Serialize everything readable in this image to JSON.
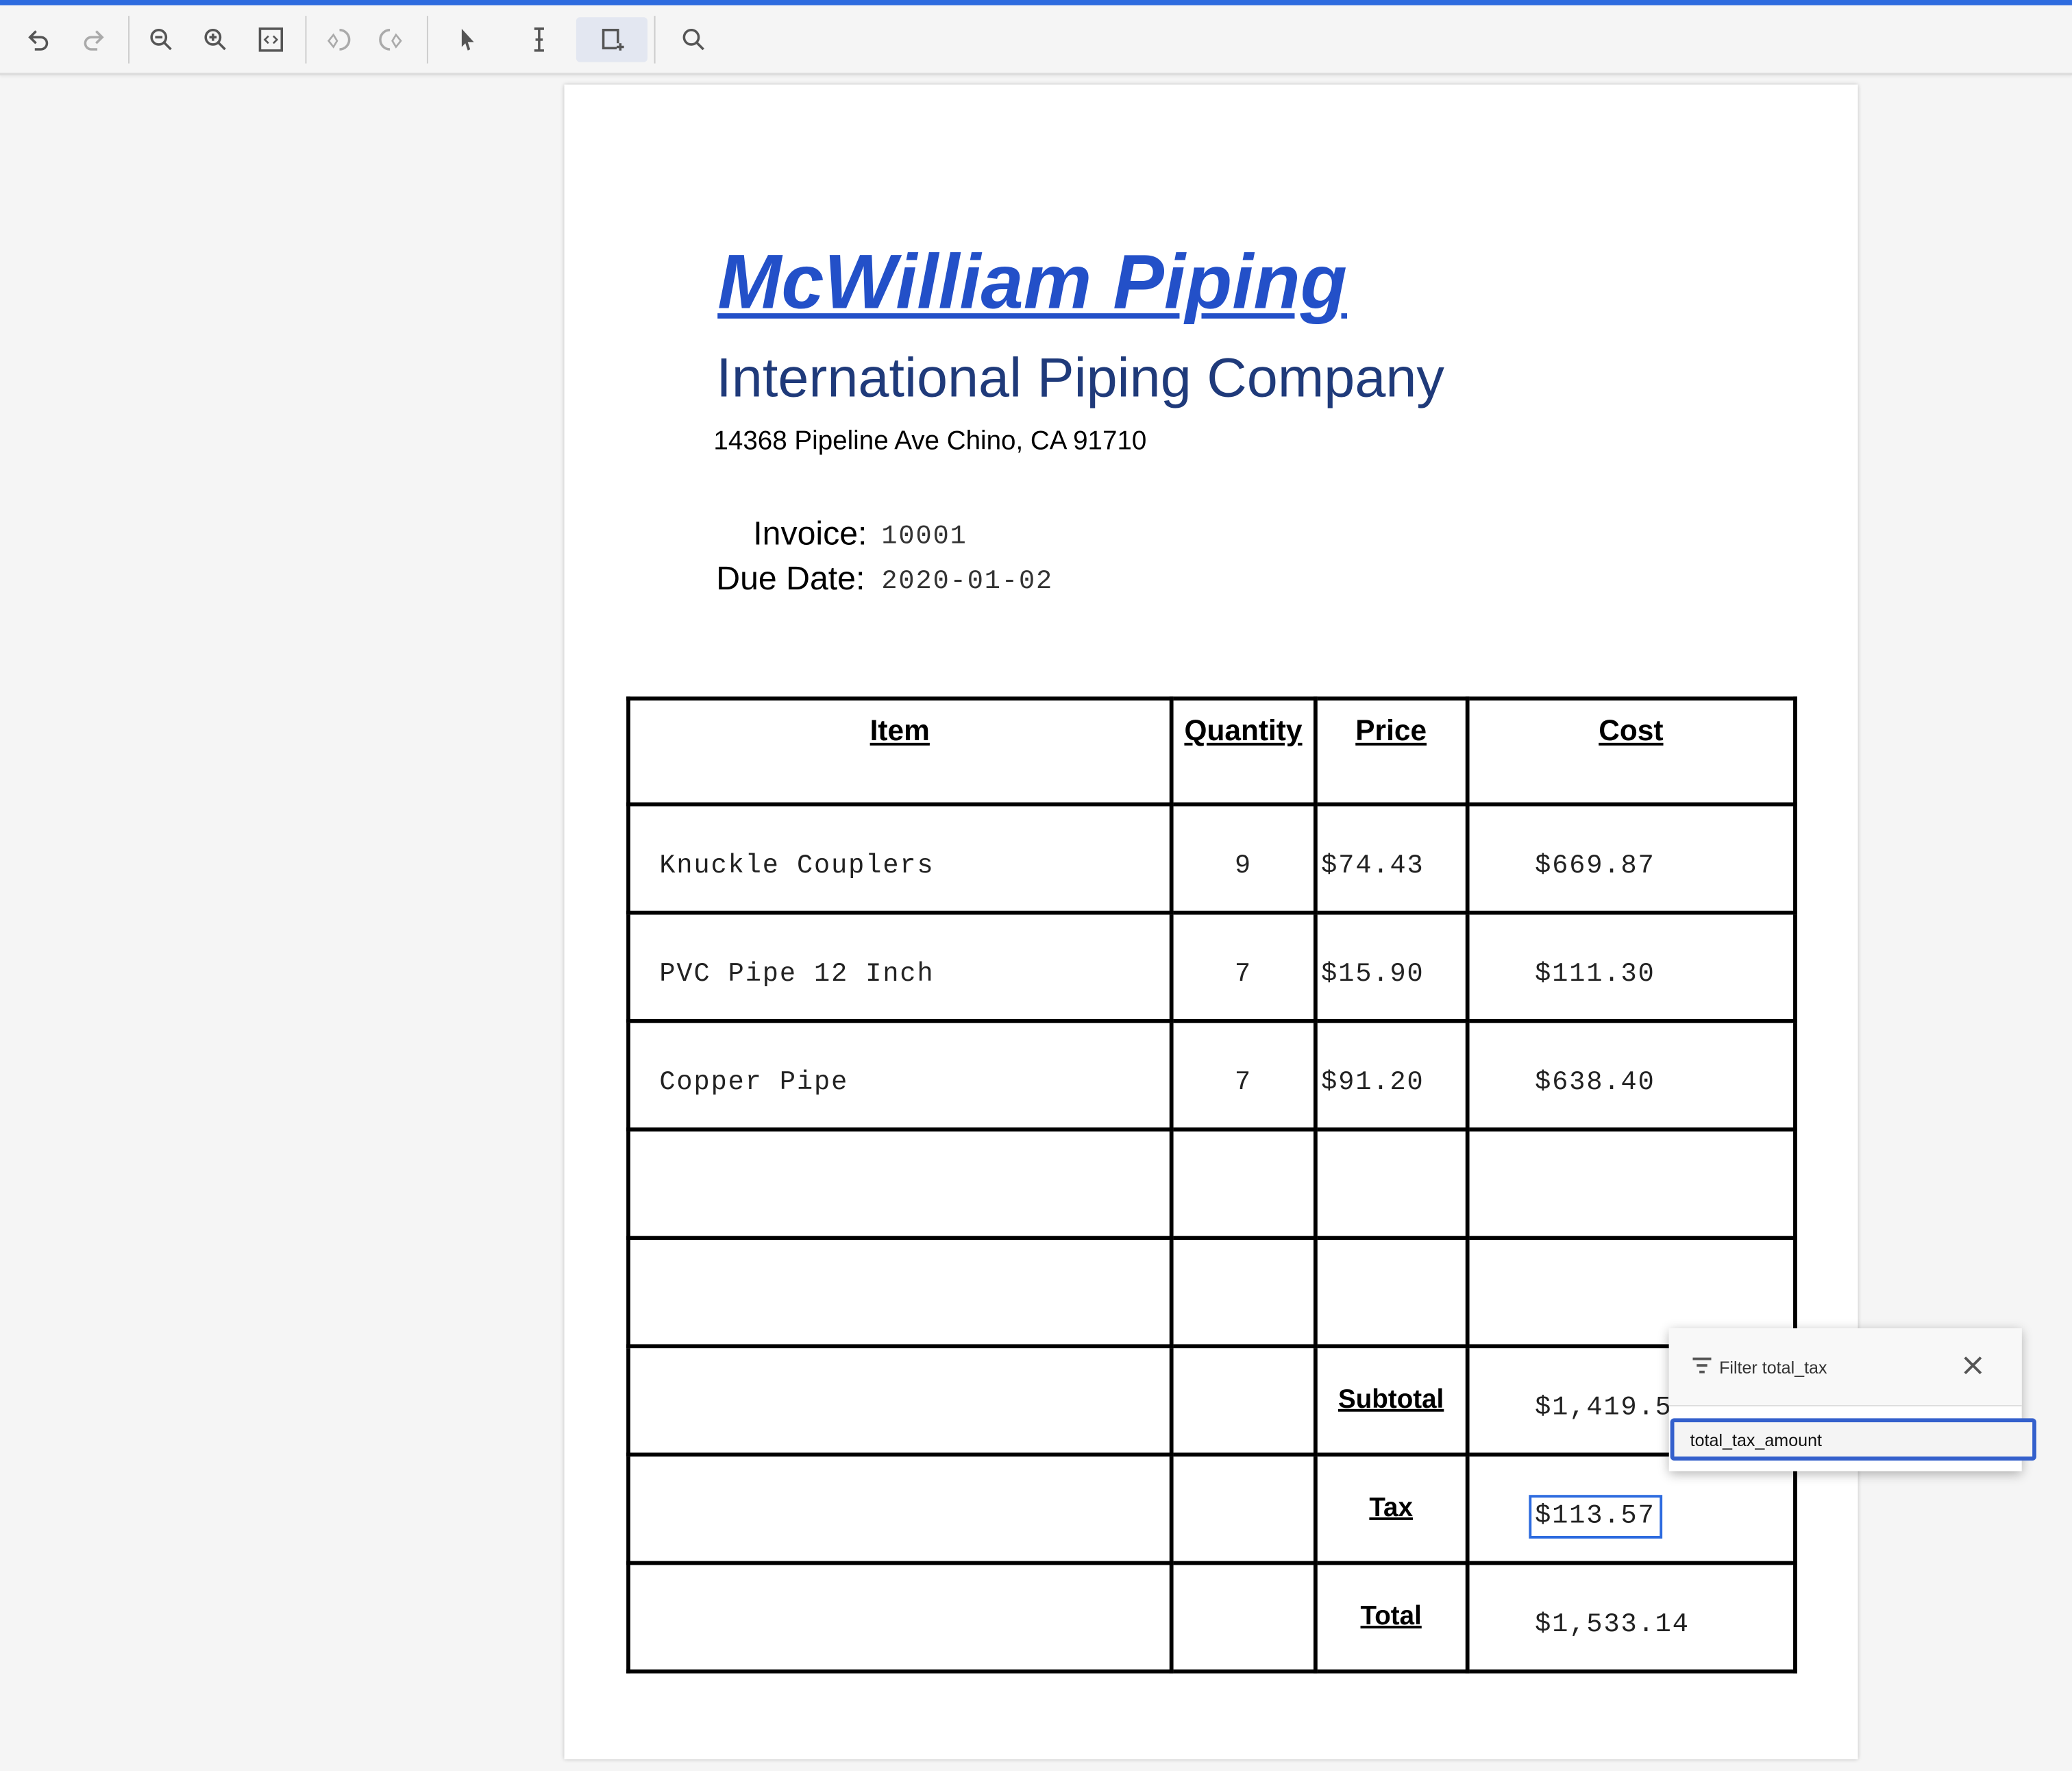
{
  "toolbar": {
    "buttons": [
      "undo-icon",
      "redo-icon",
      "zoom-out-icon",
      "zoom-in-icon",
      "fit-page-icon",
      "rotate-ccw-icon",
      "rotate-cw-icon",
      "pointer-icon",
      "text-cursor-icon",
      "draw-box-icon",
      "search-icon"
    ],
    "selected": "draw-box-icon"
  },
  "colors": {
    "accent": "#2d6bdf",
    "title": "#2350c8",
    "subtitle": "#1f3a7a"
  },
  "document": {
    "title": "McWilliam Piping",
    "subtitle": "International Piping Company",
    "address": "14368 Pipeline Ave Chino, CA 91710",
    "invoice_label": "Invoice:",
    "invoice_value": "10001",
    "due_label": "Due Date:",
    "due_value": "2020-01-02",
    "table": {
      "headers": [
        "Item",
        "Quantity",
        "Price",
        "Cost"
      ],
      "rows": [
        [
          "Knuckle Couplers",
          "9",
          "$74.43",
          "$669.87"
        ],
        [
          "PVC Pipe 12 Inch",
          "7",
          "$15.90",
          "$111.30"
        ],
        [
          "Copper Pipe",
          "7",
          "$91.20",
          "$638.40"
        ],
        [
          "",
          "",
          "",
          ""
        ],
        [
          "",
          "",
          "",
          ""
        ]
      ],
      "subtotal_label": "Subtotal",
      "subtotal_value": "$1,419.57",
      "tax_label": "Tax",
      "tax_value": "$113.57",
      "total_label": "Total",
      "total_value": "$1,533.14"
    }
  },
  "popup": {
    "title": "Filter total_tax",
    "input_value": "total_tax_amount"
  }
}
